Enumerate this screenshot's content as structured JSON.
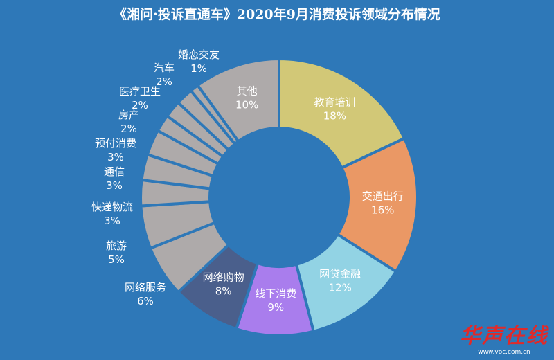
{
  "chart_data": {
    "type": "pie",
    "title": "《湘问·投诉直通车》2020年9月消费投诉领域分布情况",
    "legend": "none",
    "series": [
      {
        "category": "教育培训",
        "label": "18%",
        "value": 18,
        "color": "#d2c877"
      },
      {
        "category": "交通出行",
        "label": "16%",
        "value": 16,
        "color": "#ea9865"
      },
      {
        "category": "网贷金融",
        "label": "12%",
        "value": 12,
        "color": "#92d3e4"
      },
      {
        "category": "线下消费",
        "label": "9%",
        "value": 9,
        "color": "#a97ded"
      },
      {
        "category": "网络购物",
        "label": "8%",
        "value": 8,
        "color": "#4a5f8c"
      },
      {
        "category": "网络服务",
        "label": "6%",
        "value": 6,
        "color": "#aeaaaa"
      },
      {
        "category": "旅游",
        "label": "5%",
        "value": 5,
        "color": "#aeaaaa"
      },
      {
        "category": "快递物流",
        "label": "3%",
        "value": 3,
        "color": "#aeaaaa"
      },
      {
        "category": "通信",
        "label": "3%",
        "value": 3,
        "color": "#aeaaaa"
      },
      {
        "category": "预付消费",
        "label": "3%",
        "value": 3,
        "color": "#aeaaaa"
      },
      {
        "category": "房产",
        "label": "2%",
        "value": 2,
        "color": "#aeaaaa"
      },
      {
        "category": "医疗卫生",
        "label": "2%",
        "value": 2,
        "color": "#aeaaaa"
      },
      {
        "category": "汽车",
        "label": "2%",
        "value": 2,
        "color": "#aeaaaa"
      },
      {
        "category": "婚恋交友",
        "label": "1%",
        "value": 1,
        "color": "#aeaaaa"
      },
      {
        "category": "其他",
        "label": "10%",
        "value": 10,
        "color": "#aeaaaa"
      }
    ]
  },
  "theme": {
    "background": "#2e78b8",
    "label_color": "#ffffff"
  },
  "watermark": {
    "logo": "华声在线",
    "url": "www.voc.com.cn"
  }
}
